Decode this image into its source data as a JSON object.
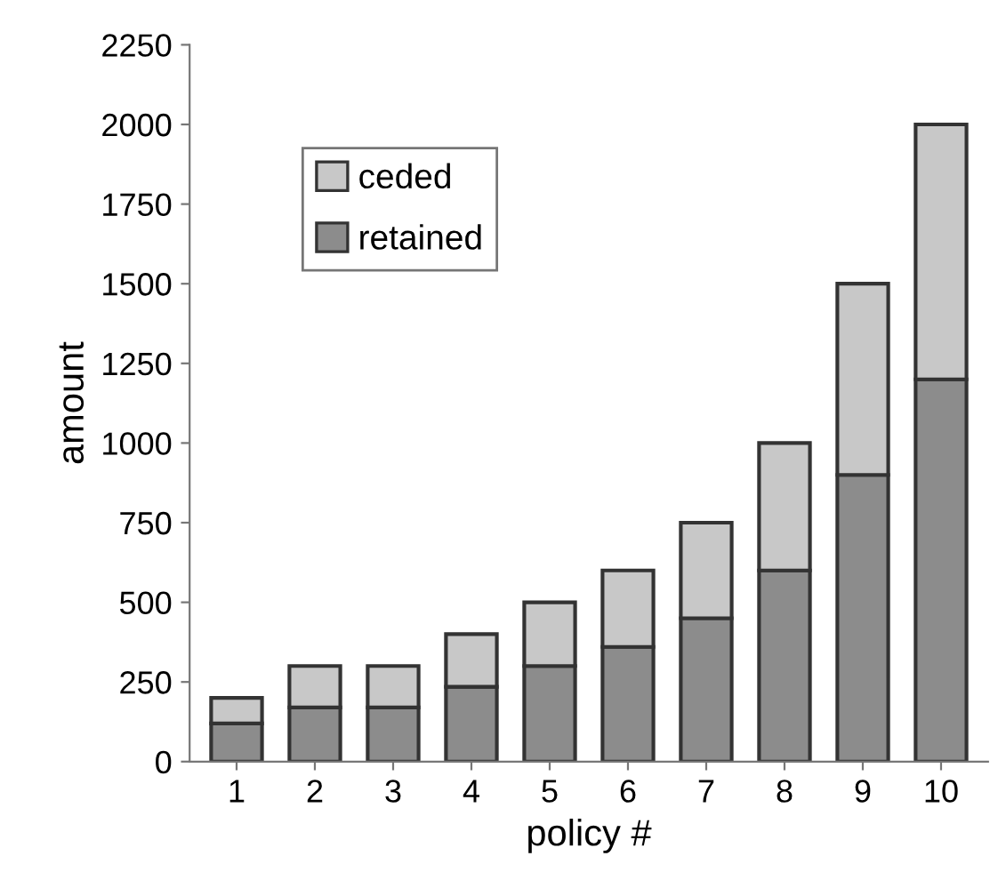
{
  "chart_data": {
    "type": "bar",
    "stacked": true,
    "xlabel": "policy #",
    "ylabel": "amount",
    "categories": [
      "1",
      "2",
      "3",
      "4",
      "5",
      "6",
      "7",
      "8",
      "9",
      "10"
    ],
    "series": [
      {
        "name": "retained",
        "color": "#8c8c8c",
        "values": [
          120,
          170,
          170,
          235,
          300,
          360,
          450,
          600,
          900,
          1200
        ]
      },
      {
        "name": "ceded",
        "color": "#c8c8c8",
        "values": [
          80,
          130,
          130,
          165,
          200,
          240,
          300,
          400,
          600,
          800
        ]
      }
    ],
    "ylim": [
      0,
      2250
    ],
    "yticks": [
      0,
      250,
      500,
      750,
      1000,
      1250,
      1500,
      1750,
      2000,
      2250
    ],
    "legend": "top left",
    "grid": false
  }
}
